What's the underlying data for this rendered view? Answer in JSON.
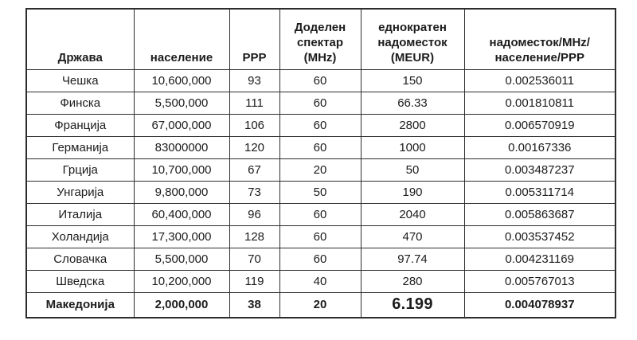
{
  "chart_data": {
    "type": "table",
    "title": "",
    "columns": [
      {
        "key": "country",
        "label": "Држава"
      },
      {
        "key": "population",
        "label": "население"
      },
      {
        "key": "ppp",
        "label": "PPP"
      },
      {
        "key": "spectrum",
        "label": "Доделен\nспектар\n(MHz)"
      },
      {
        "key": "fee",
        "label": "еднократен\nнадоместок\n(MEUR)"
      },
      {
        "key": "ratio",
        "label": "надоместок/MHz/\nнаселение/PPP"
      }
    ],
    "rows": [
      [
        "Чешка",
        "10,600,000",
        "93",
        "60",
        "150",
        "0.002536011"
      ],
      [
        "Финска",
        "5,500,000",
        "111",
        "60",
        "66.33",
        "0.001810811"
      ],
      [
        "Франција",
        "67,000,000",
        "106",
        "60",
        "2800",
        "0.006570919"
      ],
      [
        "Германија",
        "83000000",
        "120",
        "60",
        "1000",
        "0.00167336"
      ],
      [
        "Грција",
        "10,700,000",
        "67",
        "20",
        "50",
        "0.003487237"
      ],
      [
        "Унгарија",
        "9,800,000",
        "73",
        "50",
        "190",
        "0.005311714"
      ],
      [
        "Италија",
        "60,400,000",
        "96",
        "60",
        "2040",
        "0.005863687"
      ],
      [
        "Холандија",
        "17,300,000",
        "128",
        "60",
        "470",
        "0.003537452"
      ],
      [
        "Словачка",
        "5,500,000",
        "70",
        "60",
        "97.74",
        "0.004231169"
      ],
      [
        "Шведска",
        "10,200,000",
        "119",
        "40",
        "280",
        "0.005767013"
      ]
    ],
    "summary_row": [
      "Македонија",
      "2,000,000",
      "38",
      "20",
      "6.199",
      "0.004078937"
    ],
    "colors": {
      "border": "#2d2d2d",
      "text": "#1c1c1c",
      "background": "#ffffff"
    },
    "layout": {
      "grid": "all-borders",
      "header_align": "bottom-center",
      "cell_align": "center"
    }
  }
}
